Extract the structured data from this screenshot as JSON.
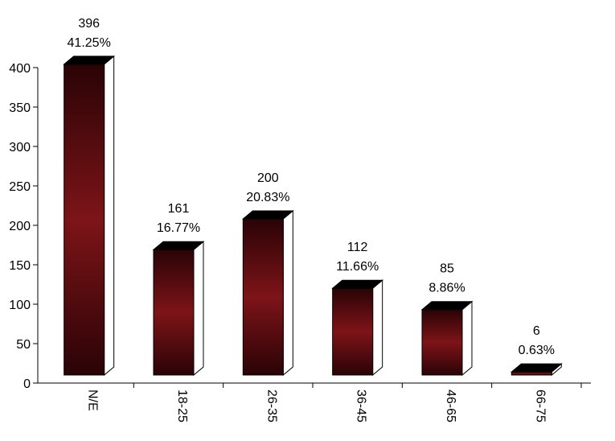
{
  "chart_data": {
    "type": "bar",
    "categories": [
      "N/E",
      "18-25",
      "26-35",
      "36-45",
      "46-65",
      "66-75"
    ],
    "values": [
      396,
      161,
      200,
      112,
      85,
      6
    ],
    "percent_labels": [
      "41.25%",
      "16.77%",
      "20.83%",
      "11.66%",
      "8.86%",
      "0.63%"
    ],
    "value_labels": [
      "396",
      "161",
      "200",
      "112",
      "85",
      "6"
    ],
    "yticks": [
      "0",
      "50",
      "100",
      "150",
      "200",
      "250",
      "300",
      "350",
      "400"
    ],
    "ylim": [
      0,
      400
    ],
    "title": "",
    "xlabel": "",
    "ylabel": "",
    "grid": false,
    "style": "3d-bar",
    "colors": {
      "bar_dark": "#2a0306",
      "bar_mid": "#7d1418",
      "top_face": "#000000",
      "side_face": "#ffffff",
      "outline": "#000000"
    }
  }
}
